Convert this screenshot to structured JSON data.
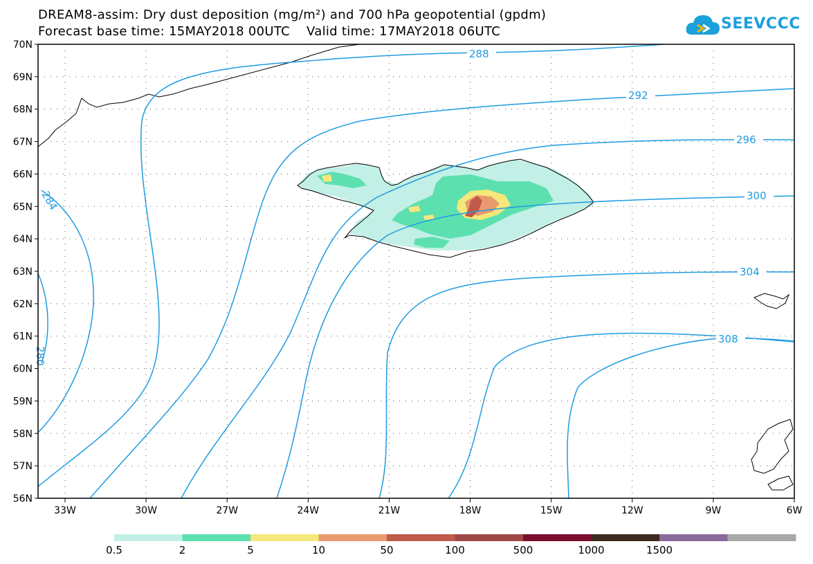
{
  "header": {
    "title_line1": "DREAM8-assim: Dry dust deposition (mg/m²) and 700 hPa geopotential (gpdm)",
    "title_line2": "Forecast base time: 15MAY2018 00UTC    Valid time: 17MAY2018 06UTC"
  },
  "logo": {
    "text": "SEEVCCC",
    "icon": "cloud-icon"
  },
  "map": {
    "lat_labels": [
      "70N",
      "69N",
      "68N",
      "67N",
      "66N",
      "65N",
      "64N",
      "63N",
      "62N",
      "61N",
      "60N",
      "59N",
      "58N",
      "57N",
      "56N"
    ],
    "lon_labels": [
      "33W",
      "30W",
      "27W",
      "24W",
      "21W",
      "18W",
      "15W",
      "12W",
      "9W",
      "6W"
    ],
    "contour_labels": [
      "288",
      "292",
      "296",
      "300",
      "304",
      "308",
      "284",
      "280"
    ],
    "contour_color": "#1e9be0"
  },
  "colorbar": {
    "colors": [
      "#c2f0e6",
      "#5de0b0",
      "#f5e87a",
      "#e89a6e",
      "#c05a4a",
      "#a04848",
      "#7a0e2e",
      "#3d2a20",
      "#8a6a9a",
      "#a8a8a8"
    ],
    "labels": [
      "0.5",
      "2",
      "5",
      "10",
      "50",
      "100",
      "500",
      "1000",
      "1500"
    ]
  }
}
